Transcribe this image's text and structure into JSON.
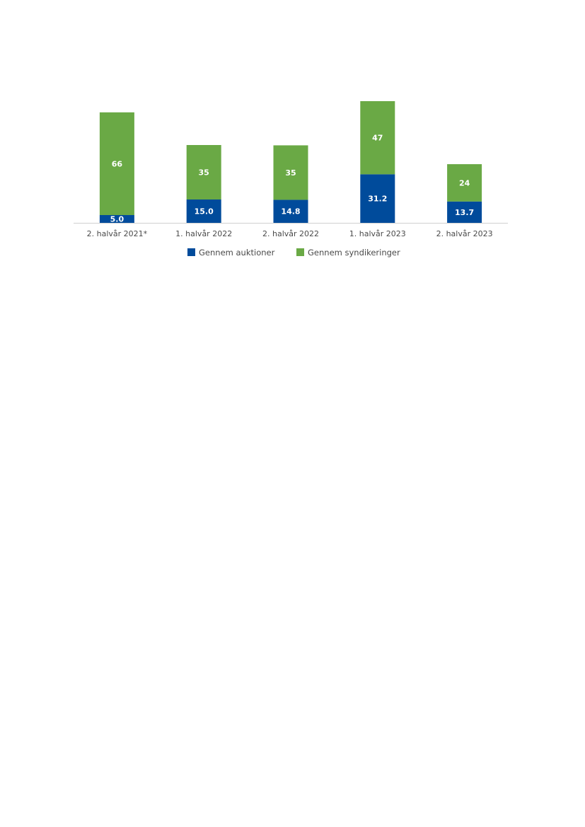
{
  "chart_data": {
    "type": "bar",
    "stacked": true,
    "categories": [
      "2. halvår 2021*",
      "1. halvår 2022",
      "2. halvår 2022",
      "1. halvår 2023",
      "2. halvår 2023"
    ],
    "series": [
      {
        "name": "Gennem auktioner",
        "values": [
          5.0,
          15.0,
          14.8,
          31.2,
          13.7
        ],
        "labels": [
          "5.0",
          "15.0",
          "14.8",
          "31.2",
          "13.7"
        ],
        "color": "#004b9b"
      },
      {
        "name": "Gennem syndikeringer",
        "values": [
          66,
          35,
          35,
          47,
          24
        ],
        "labels": [
          "66",
          "35",
          "35",
          "47",
          "24"
        ],
        "color": "#6aa945"
      }
    ],
    "y_axis_visible": false,
    "grid": false,
    "legend_position": "bottom"
  }
}
